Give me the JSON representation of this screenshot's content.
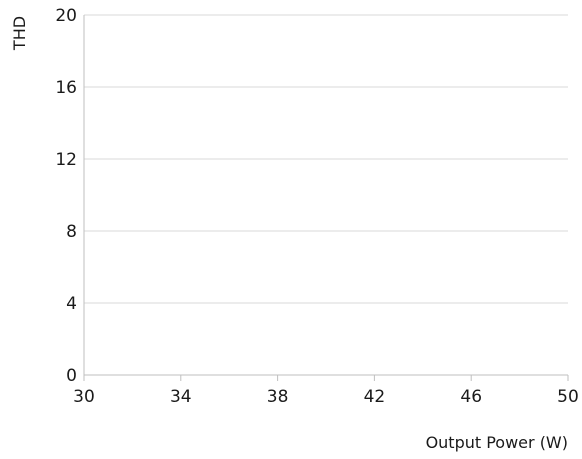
{
  "chart_data": {
    "type": "line",
    "title": "",
    "xlabel": "Output Power (W)",
    "ylabel": "THD",
    "xlim": [
      30,
      50
    ],
    "ylim": [
      0,
      20
    ],
    "x_ticks": [
      30,
      34,
      38,
      42,
      46,
      50
    ],
    "y_ticks": [
      0,
      4,
      8,
      12,
      16,
      20
    ],
    "grid": "horizontal",
    "series": [],
    "colors": {
      "grid": "#d9d9d9",
      "axis": "#bfbfbf",
      "text": "#1a1a1a"
    }
  }
}
